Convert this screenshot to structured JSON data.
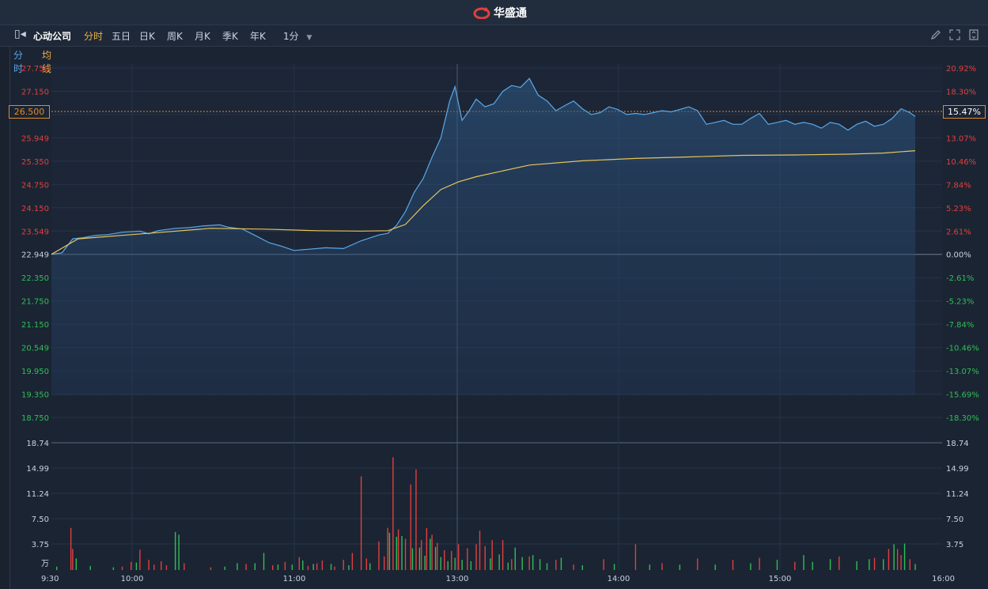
{
  "app": {
    "brand": "华盛通"
  },
  "toolbar": {
    "stock_name": "心动公司",
    "tabs": [
      {
        "label": "分时",
        "active": true
      },
      {
        "label": "五日",
        "active": false
      },
      {
        "label": "日K",
        "active": false
      },
      {
        "label": "周K",
        "active": false
      },
      {
        "label": "月K",
        "active": false
      },
      {
        "label": "季K",
        "active": false
      },
      {
        "label": "年K",
        "active": false
      }
    ],
    "interval": "1分",
    "right_icons": [
      "pencil-icon",
      "fullscreen-icon",
      "expand-icon"
    ]
  },
  "legend": {
    "line": "分时",
    "avg": "均线"
  },
  "colors": {
    "price_line": "#5aa8ea",
    "avg_line": "#e8c45a",
    "up": "#e0403e",
    "down": "#2fbf54",
    "accent": "#e08a2c"
  },
  "current": {
    "price_label": "26.500",
    "pct_label": "15.47%"
  },
  "chart_data": {
    "type": "line",
    "prev_close": 22.949,
    "price_ticks": [
      "27.750",
      "27.150",
      "26.500",
      "25.949",
      "25.350",
      "24.750",
      "24.150",
      "23.549",
      "22.949",
      "22.350",
      "21.750",
      "21.150",
      "20.549",
      "19.950",
      "19.350",
      "18.750"
    ],
    "pct_ticks": [
      "20.92%",
      "18.30%",
      "15.47%",
      "13.07%",
      "10.46%",
      "7.84%",
      "5.23%",
      "2.61%",
      "0.00%",
      "-2.61%",
      "-5.23%",
      "-7.84%",
      "-10.46%",
      "-13.07%",
      "-15.69%",
      "-18.30%"
    ],
    "ylim": [
      18.75,
      27.75
    ],
    "x_ticks": [
      "9:30",
      "10:00",
      "11:00",
      "13:00",
      "14:00",
      "15:00",
      "16:00"
    ],
    "volume_ticks": [
      "18.74",
      "14.99",
      "11.24",
      "7.50",
      "3.75",
      "万"
    ],
    "volume_max": 18.74,
    "price_series": [
      [
        0,
        22.95
      ],
      [
        6,
        22.99
      ],
      [
        12,
        23.35
      ],
      [
        18,
        23.38
      ],
      [
        25,
        23.44
      ],
      [
        32,
        23.46
      ],
      [
        40,
        23.52
      ],
      [
        50,
        23.55
      ],
      [
        55,
        23.48
      ],
      [
        60,
        23.56
      ],
      [
        70,
        23.62
      ],
      [
        78,
        23.64
      ],
      [
        85,
        23.68
      ],
      [
        95,
        23.71
      ],
      [
        100,
        23.65
      ],
      [
        108,
        23.6
      ],
      [
        115,
        23.44
      ],
      [
        123,
        23.25
      ],
      [
        130,
        23.16
      ],
      [
        137,
        23.05
      ],
      [
        145,
        23.08
      ],
      [
        155,
        23.12
      ],
      [
        165,
        23.1
      ],
      [
        175,
        23.3
      ],
      [
        185,
        23.45
      ],
      [
        190,
        23.49
      ],
      [
        195,
        23.7
      ],
      [
        200,
        24.05
      ],
      [
        205,
        24.55
      ],
      [
        210,
        24.9
      ],
      [
        215,
        25.45
      ],
      [
        220,
        25.95
      ],
      [
        225,
        26.9
      ],
      [
        228,
        27.27
      ],
      [
        232,
        26.4
      ],
      [
        236,
        26.65
      ],
      [
        240,
        26.95
      ],
      [
        245,
        26.75
      ],
      [
        250,
        26.83
      ],
      [
        255,
        27.15
      ],
      [
        260,
        27.3
      ],
      [
        265,
        27.25
      ],
      [
        270,
        27.48
      ],
      [
        275,
        27.05
      ],
      [
        280,
        26.9
      ],
      [
        285,
        26.65
      ],
      [
        290,
        26.78
      ],
      [
        295,
        26.9
      ],
      [
        300,
        26.7
      ],
      [
        305,
        26.55
      ],
      [
        310,
        26.6
      ],
      [
        315,
        26.75
      ],
      [
        320,
        26.68
      ],
      [
        325,
        26.55
      ],
      [
        330,
        26.58
      ],
      [
        335,
        26.55
      ],
      [
        340,
        26.6
      ],
      [
        345,
        26.65
      ],
      [
        350,
        26.62
      ],
      [
        355,
        26.68
      ],
      [
        360,
        26.75
      ],
      [
        365,
        26.65
      ],
      [
        370,
        26.3
      ],
      [
        375,
        26.35
      ],
      [
        380,
        26.4
      ],
      [
        385,
        26.3
      ],
      [
        390,
        26.3
      ],
      [
        395,
        26.45
      ],
      [
        400,
        26.58
      ],
      [
        405,
        26.3
      ],
      [
        410,
        26.35
      ],
      [
        415,
        26.4
      ],
      [
        420,
        26.3
      ],
      [
        425,
        26.35
      ],
      [
        430,
        26.3
      ],
      [
        435,
        26.2
      ],
      [
        440,
        26.35
      ],
      [
        445,
        26.3
      ],
      [
        450,
        26.15
      ],
      [
        455,
        26.3
      ],
      [
        460,
        26.38
      ],
      [
        465,
        26.25
      ],
      [
        470,
        26.3
      ],
      [
        475,
        26.45
      ],
      [
        480,
        26.7
      ],
      [
        485,
        26.6
      ],
      [
        488,
        26.5
      ]
    ],
    "avg_series": [
      [
        0,
        22.95
      ],
      [
        15,
        23.35
      ],
      [
        40,
        23.44
      ],
      [
        60,
        23.51
      ],
      [
        90,
        23.62
      ],
      [
        120,
        23.6
      ],
      [
        150,
        23.56
      ],
      [
        175,
        23.55
      ],
      [
        190,
        23.56
      ],
      [
        200,
        23.72
      ],
      [
        210,
        24.2
      ],
      [
        220,
        24.62
      ],
      [
        230,
        24.82
      ],
      [
        240,
        24.95
      ],
      [
        250,
        25.05
      ],
      [
        270,
        25.25
      ],
      [
        300,
        25.36
      ],
      [
        330,
        25.42
      ],
      [
        360,
        25.46
      ],
      [
        390,
        25.5
      ],
      [
        420,
        25.51
      ],
      [
        450,
        25.53
      ],
      [
        470,
        25.56
      ],
      [
        488,
        25.62
      ]
    ],
    "volume_up_bars": [
      [
        11,
        6.2
      ],
      [
        12,
        3.1
      ],
      [
        40,
        0.5
      ],
      [
        45,
        1.2
      ],
      [
        50,
        3.0
      ],
      [
        55,
        1.5
      ],
      [
        58,
        0.8
      ],
      [
        62,
        1.3
      ],
      [
        65,
        0.7
      ],
      [
        75,
        1.0
      ],
      [
        90,
        0.4
      ],
      [
        110,
        0.9
      ],
      [
        125,
        0.7
      ],
      [
        132,
        1.2
      ],
      [
        140,
        1.9
      ],
      [
        145,
        0.6
      ],
      [
        150,
        1.0
      ],
      [
        153,
        1.4
      ],
      [
        160,
        0.5
      ],
      [
        165,
        1.5
      ],
      [
        170,
        2.5
      ],
      [
        175,
        13.8
      ],
      [
        178,
        1.7
      ],
      [
        185,
        4.2
      ],
      [
        188,
        2.0
      ],
      [
        190,
        6.2
      ],
      [
        193,
        16.6
      ],
      [
        196,
        6.0
      ],
      [
        200,
        4.6
      ],
      [
        203,
        12.6
      ],
      [
        206,
        14.8
      ],
      [
        209,
        4.4
      ],
      [
        212,
        6.2
      ],
      [
        215,
        5.2
      ],
      [
        218,
        4.0
      ],
      [
        222,
        2.9
      ],
      [
        226,
        2.8
      ],
      [
        230,
        3.8
      ],
      [
        235,
        3.2
      ],
      [
        240,
        3.8
      ],
      [
        242,
        5.8
      ],
      [
        245,
        3.5
      ],
      [
        249,
        4.4
      ],
      [
        255,
        4.4
      ],
      [
        260,
        1.6
      ],
      [
        270,
        2.0
      ],
      [
        285,
        1.5
      ],
      [
        295,
        0.8
      ],
      [
        312,
        1.6
      ],
      [
        330,
        3.8
      ],
      [
        345,
        1.0
      ],
      [
        365,
        1.7
      ],
      [
        385,
        1.5
      ],
      [
        400,
        1.8
      ],
      [
        420,
        1.2
      ],
      [
        445,
        2.0
      ],
      [
        465,
        1.8
      ],
      [
        473,
        3.1
      ],
      [
        478,
        3.1
      ],
      [
        480,
        2.2
      ],
      [
        485,
        1.6
      ]
    ],
    "volume_down_bars": [
      [
        3,
        0.5
      ],
      [
        14,
        1.7
      ],
      [
        22,
        0.6
      ],
      [
        35,
        0.4
      ],
      [
        48,
        1.1
      ],
      [
        70,
        5.6
      ],
      [
        72,
        5.2
      ],
      [
        98,
        0.5
      ],
      [
        105,
        1.0
      ],
      [
        115,
        1.0
      ],
      [
        120,
        2.5
      ],
      [
        128,
        0.8
      ],
      [
        136,
        0.8
      ],
      [
        142,
        1.4
      ],
      [
        148,
        0.9
      ],
      [
        158,
        0.9
      ],
      [
        168,
        0.7
      ],
      [
        180,
        1.0
      ],
      [
        191,
        5.5
      ],
      [
        195,
        4.9
      ],
      [
        198,
        5.0
      ],
      [
        204,
        3.2
      ],
      [
        208,
        3.3
      ],
      [
        211,
        2.1
      ],
      [
        214,
        4.6
      ],
      [
        217,
        3.4
      ],
      [
        220,
        1.9
      ],
      [
        224,
        1.3
      ],
      [
        228,
        1.8
      ],
      [
        232,
        1.5
      ],
      [
        237,
        1.3
      ],
      [
        248,
        1.7
      ],
      [
        253,
        2.3
      ],
      [
        258,
        1.1
      ],
      [
        262,
        3.3
      ],
      [
        266,
        1.9
      ],
      [
        272,
        2.2
      ],
      [
        276,
        1.6
      ],
      [
        280,
        1.0
      ],
      [
        288,
        1.8
      ],
      [
        300,
        0.7
      ],
      [
        318,
        0.9
      ],
      [
        338,
        0.8
      ],
      [
        355,
        0.8
      ],
      [
        375,
        0.8
      ],
      [
        395,
        1.0
      ],
      [
        410,
        1.5
      ],
      [
        425,
        2.2
      ],
      [
        430,
        1.2
      ],
      [
        440,
        1.6
      ],
      [
        455,
        1.3
      ],
      [
        462,
        1.6
      ],
      [
        470,
        1.6
      ],
      [
        476,
        3.8
      ],
      [
        482,
        3.9
      ],
      [
        488,
        0.9
      ]
    ]
  }
}
